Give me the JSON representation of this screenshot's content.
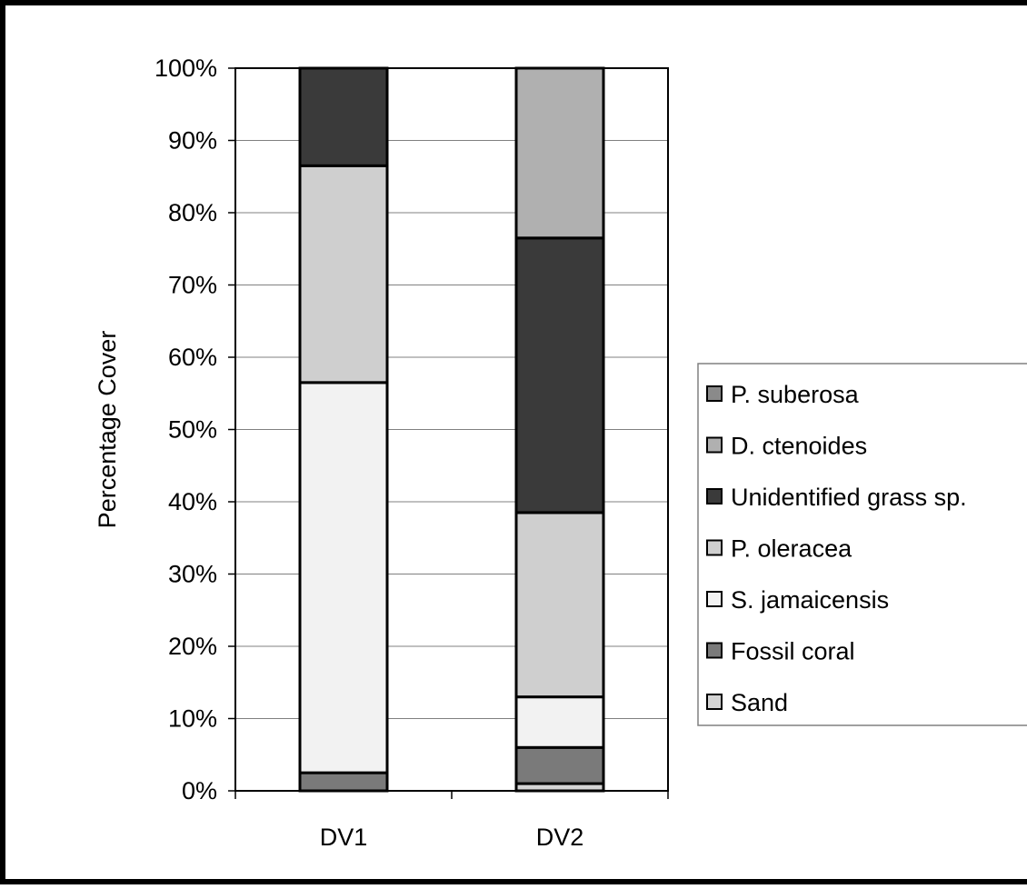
{
  "chart_data": {
    "type": "bar",
    "stacked": true,
    "categories": [
      "DV1",
      "DV2"
    ],
    "ylabel": "Percentage Cover",
    "xlabel": "",
    "ylim": [
      0,
      100
    ],
    "y_ticks": [
      "0%",
      "10%",
      "20%",
      "30%",
      "40%",
      "50%",
      "60%",
      "70%",
      "80%",
      "90%",
      "100%"
    ],
    "grid": true,
    "legend_position": "right",
    "series": [
      {
        "name": "Sand",
        "color": "#d4d4d4",
        "values": [
          0,
          1
        ]
      },
      {
        "name": "Fossil coral",
        "color": "#7a7a7a",
        "values": [
          2.5,
          5
        ]
      },
      {
        "name": "S. jamaicensis",
        "color": "#f2f2f2",
        "values": [
          54,
          7
        ]
      },
      {
        "name": "P. oleracea",
        "color": "#cfcfcf",
        "values": [
          30,
          25.5
        ]
      },
      {
        "name": "Unidentified grass sp.",
        "color": "#3a3a3a",
        "values": [
          13.5,
          38
        ]
      },
      {
        "name": "D. ctenoides",
        "color": "#b0b0b0",
        "values": [
          0,
          23.5
        ]
      },
      {
        "name": "P. suberosa",
        "color": "#8a8a8a",
        "values": [
          0,
          0
        ]
      }
    ],
    "legend_order": [
      "P. suberosa",
      "D. ctenoides",
      "Unidentified grass sp.",
      "P. oleracea",
      "S. jamaicensis",
      "Fossil coral",
      "Sand"
    ]
  }
}
